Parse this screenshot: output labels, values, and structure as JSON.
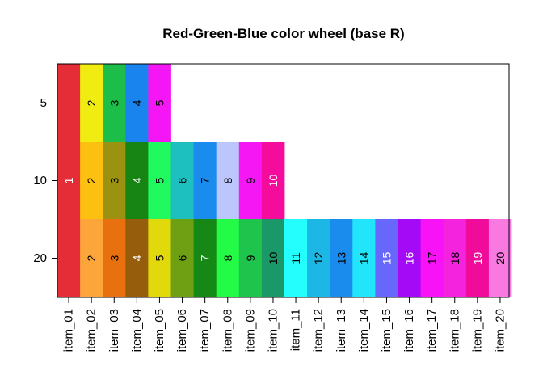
{
  "chart_data": {
    "type": "heatmap",
    "title": "Red-Green-Blue color wheel (base R)",
    "xlabel": "",
    "ylabel": "",
    "x_categories": [
      "item_01",
      "item_02",
      "item_03",
      "item_04",
      "item_05",
      "item_06",
      "item_07",
      "item_08",
      "item_09",
      "item_10",
      "item_11",
      "item_12",
      "item_13",
      "item_14",
      "item_15",
      "item_16",
      "item_17",
      "item_18",
      "item_19",
      "item_20"
    ],
    "y_ticks": [
      "5",
      "10",
      "20"
    ],
    "rows": [
      {
        "level": "5",
        "cells": [
          {
            "label": "2",
            "color": "#f0ec12",
            "text_color": "#000000"
          },
          {
            "label": "3",
            "color": "#1dbd4a",
            "text_color": "#000000"
          },
          {
            "label": "4",
            "color": "#1a84ee",
            "text_color": "#000000"
          },
          {
            "label": "5",
            "color": "#f516f5",
            "text_color": "#000000"
          }
        ]
      },
      {
        "level": "10",
        "cells": [
          {
            "label": "2",
            "color": "#fcc010",
            "text_color": "#000000"
          },
          {
            "label": "3",
            "color": "#9c9212",
            "text_color": "#000000"
          },
          {
            "label": "4",
            "color": "#168514",
            "text_color": "#ffffff"
          },
          {
            "label": "5",
            "color": "#20fa5e",
            "text_color": "#000000"
          },
          {
            "label": "6",
            "color": "#1dbfbf",
            "text_color": "#000000"
          },
          {
            "label": "7",
            "color": "#1a8ced",
            "text_color": "#000000"
          },
          {
            "label": "8",
            "color": "#bcc6fd",
            "text_color": "#000000"
          },
          {
            "label": "9",
            "color": "#f517f4",
            "text_color": "#000000"
          },
          {
            "label": "10",
            "color": "#f50c9c",
            "text_color": "#ffffff"
          }
        ]
      },
      {
        "level": "20",
        "cells": [
          {
            "label": "2",
            "color": "#fba53a",
            "text_color": "#000000"
          },
          {
            "label": "3",
            "color": "#e9700f",
            "text_color": "#000000"
          },
          {
            "label": "4",
            "color": "#955d0c",
            "text_color": "#ffffff"
          },
          {
            "label": "5",
            "color": "#e2d90d",
            "text_color": "#000000"
          },
          {
            "label": "6",
            "color": "#6f9f12",
            "text_color": "#000000"
          },
          {
            "label": "7",
            "color": "#168816",
            "text_color": "#ffffff"
          },
          {
            "label": "8",
            "color": "#24fb47",
            "text_color": "#000000"
          },
          {
            "label": "9",
            "color": "#1fc44c",
            "text_color": "#000000"
          },
          {
            "label": "10",
            "color": "#1a9868",
            "text_color": "#000000"
          },
          {
            "label": "11",
            "color": "#24fefc",
            "text_color": "#000000"
          },
          {
            "label": "12",
            "color": "#1cb7e4",
            "text_color": "#000000"
          },
          {
            "label": "13",
            "color": "#1a8ced",
            "text_color": "#000000"
          },
          {
            "label": "14",
            "color": "#22e5fb",
            "text_color": "#000000"
          },
          {
            "label": "15",
            "color": "#6767fb",
            "text_color": "#ffffff"
          },
          {
            "label": "16",
            "color": "#a50af7",
            "text_color": "#ffffff"
          },
          {
            "label": "17",
            "color": "#f813f7",
            "text_color": "#000000"
          },
          {
            "label": "18",
            "color": "#f323de",
            "text_color": "#000000"
          },
          {
            "label": "19",
            "color": "#f10b9b",
            "text_color": "#ffffff"
          },
          {
            "label": "20",
            "color": "#f87ae0",
            "text_color": "#000000"
          }
        ]
      }
    ],
    "spanning_cell": {
      "label": "1",
      "color": "#e52d38",
      "text_color": "#ffffff"
    },
    "grid": false,
    "legend": "none"
  }
}
